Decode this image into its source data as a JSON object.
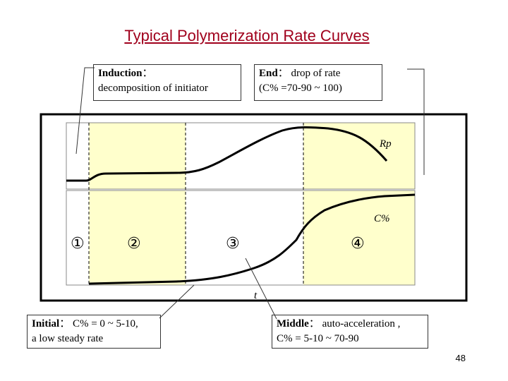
{
  "slide": {
    "title": "Typical Polymerization Rate Curves",
    "page_number": "48"
  },
  "callouts": {
    "induction": {
      "bold": "Induction",
      "sep": "：",
      "line1_rest": "",
      "line2": "decomposition of initiator"
    },
    "end": {
      "bold": "End",
      "sep": "：",
      "line1_rest": " drop of rate",
      "line2": "(C% =70-90 ~ 100)"
    },
    "initial": {
      "bold": "Initial",
      "sep": "：",
      "line1_rest": " C% = 0 ~ 5-10,",
      "line2": "a low steady rate"
    },
    "middle": {
      "bold": "Middle",
      "sep": "：",
      "line1_rest": " auto-acceleration ,",
      "line2": "C% = 5-10 ~ 70-90"
    }
  },
  "diagram": {
    "curve_labels": {
      "rate": "Rp",
      "conversion": "C%",
      "time_axis": "t"
    },
    "stage_markers": [
      "①",
      "②",
      "③",
      "④"
    ],
    "colors": {
      "shaded_region": "#ffffcc",
      "frame": "#000000",
      "callout_border": "#333333",
      "title": "#a0001c"
    }
  }
}
